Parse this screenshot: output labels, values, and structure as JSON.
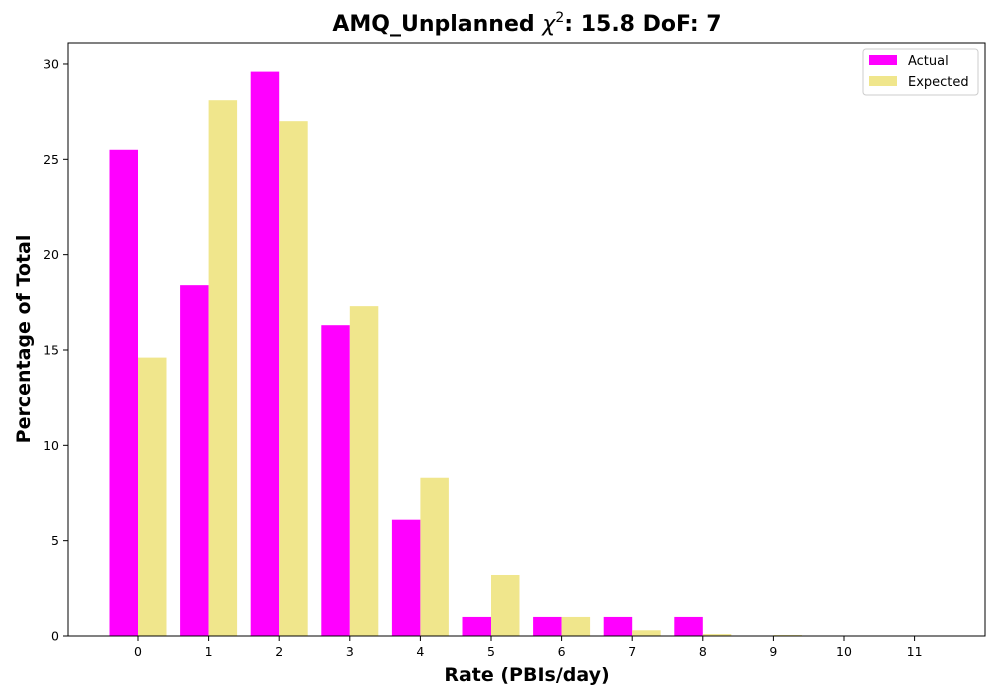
{
  "chart_data": {
    "type": "bar",
    "title_prefix": "AMQ_Unplanned ",
    "title_symbol": "χ",
    "title_sup": "2",
    "title_suffix": ": 15.8 DoF: 7",
    "xlabel": "Rate (PBIs/day)",
    "ylabel": "Percentage of Total",
    "categories": [
      "0",
      "1",
      "2",
      "3",
      "4",
      "5",
      "6",
      "7",
      "8",
      "9",
      "10",
      "11"
    ],
    "yticks": [
      "0",
      "5",
      "10",
      "15",
      "20",
      "25",
      "30"
    ],
    "ylim": [
      0,
      31.1
    ],
    "legend_position": "top-right",
    "series": [
      {
        "name": "Actual",
        "color": "#ff00ff",
        "values": [
          25.5,
          18.4,
          29.6,
          16.3,
          6.1,
          1.0,
          1.0,
          1.0,
          1.0,
          0,
          0,
          0
        ]
      },
      {
        "name": "Expected",
        "color": "#f0e68c",
        "values": [
          14.6,
          28.1,
          27.0,
          17.3,
          8.3,
          3.2,
          1.0,
          0.3,
          0.1,
          0.05,
          0,
          0
        ]
      }
    ]
  }
}
